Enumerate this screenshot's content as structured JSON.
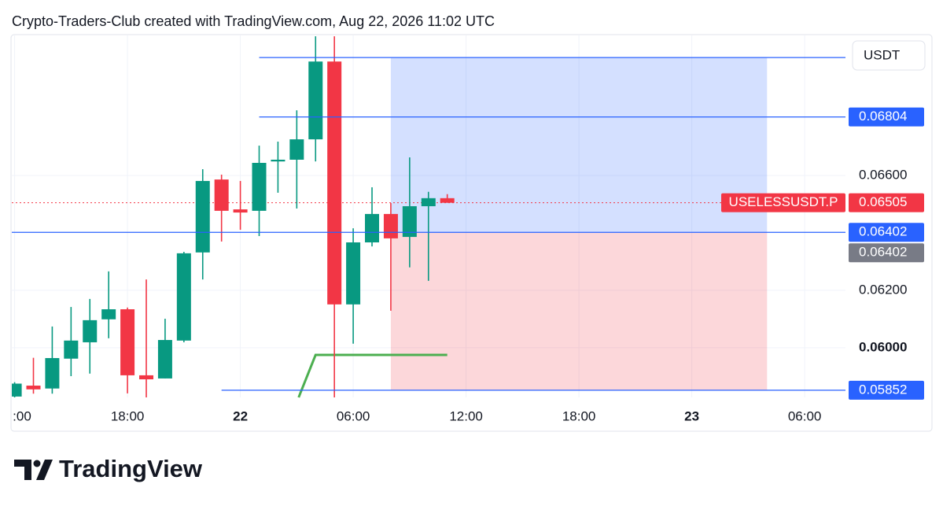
{
  "chart_data": {
    "type": "candlestick",
    "title": "Crypto-Traders-Club created with TradingView.com, Aug 22, 2026 11:02 UTC",
    "currency": "USDT",
    "up_color": "#089981",
    "down_color": "#f23645",
    "x": [
      12,
      13,
      14,
      15,
      16,
      17,
      18,
      19,
      20,
      21,
      22,
      23,
      24,
      25,
      26,
      27,
      28,
      29,
      30,
      31,
      32,
      33,
      34,
      35
    ],
    "open": [
      0.0583,
      0.05868,
      0.05858,
      0.05962,
      0.06019,
      0.06099,
      0.06134,
      0.05904,
      0.05893,
      0.06025,
      0.06332,
      0.06586,
      0.06482,
      0.06477,
      0.06649,
      0.06655,
      0.06726,
      0.06997,
      0.06151,
      0.06367,
      0.06466,
      0.06386,
      0.06493,
      0.06521
    ],
    "high": [
      0.0588,
      0.05965,
      0.06074,
      0.06142,
      0.0617,
      0.06266,
      0.0614,
      0.06238,
      0.06101,
      0.06334,
      0.06622,
      0.06603,
      0.06581,
      0.06704,
      0.06718,
      0.06827,
      0.07085,
      0.07085,
      0.06416,
      0.06559,
      0.06504,
      0.06663,
      0.06543,
      0.06535
    ],
    "low": [
      0.05827,
      0.0584,
      0.0584,
      0.05901,
      0.0591,
      0.06033,
      0.05841,
      0.05827,
      0.05893,
      0.06019,
      0.06238,
      0.0637,
      0.06411,
      0.06389,
      0.0654,
      0.06485,
      0.06649,
      0.05827,
      0.06014,
      0.06353,
      0.06129,
      0.0628,
      0.06233,
      0.06505
    ],
    "close": [
      0.05875,
      0.05855,
      0.05964,
      0.06025,
      0.06096,
      0.06134,
      0.05904,
      0.0589,
      0.06027,
      0.06329,
      0.06581,
      0.06477,
      0.06471,
      0.06644,
      0.06655,
      0.06726,
      0.06997,
      0.06151,
      0.06367,
      0.06466,
      0.06381,
      0.06493,
      0.06521,
      0.06505
    ],
    "xlim": [
      11.85,
      56.17
    ],
    "ylim": [
      0.05827,
      0.07088
    ],
    "xticks": [
      {
        "value": 12,
        "label": ":00"
      },
      {
        "value": 18,
        "label": "18:00"
      },
      {
        "value": 24,
        "label": "22",
        "bold": true
      },
      {
        "value": 30,
        "label": "06:00"
      },
      {
        "value": 36,
        "label": "12:00"
      },
      {
        "value": 42,
        "label": "18:00"
      },
      {
        "value": 48,
        "label": "23",
        "bold": true
      },
      {
        "value": 54,
        "label": "06:00"
      }
    ],
    "yticks": [
      {
        "value": 0.06,
        "label": "0.06000",
        "bold": true
      },
      {
        "value": 0.062,
        "label": "0.06200"
      },
      {
        "value": 0.066,
        "label": "0.06600"
      }
    ],
    "grid": true,
    "last_price": {
      "symbol": "USELESSUSDT.P",
      "value": 0.06505
    },
    "levels": [
      {
        "value": 0.07011,
        "x_start": 25,
        "show_label": false
      },
      {
        "value": 0.06804,
        "x_start": 25,
        "show_label": true
      },
      {
        "value": 0.06402,
        "show_label": true
      },
      {
        "value": 0.05852,
        "x_start": 23,
        "show_label": true
      }
    ],
    "level_color": "#2962ff",
    "position": {
      "start": 32,
      "end": 52,
      "entry": 0.06402,
      "target": 0.07011,
      "stop": 0.05852
    },
    "indicator": {
      "color": "#4caf50",
      "x": [
        27.1,
        28,
        35
      ],
      "values": [
        0.05827,
        0.05975,
        0.05975
      ]
    }
  },
  "brand": "TradingView"
}
